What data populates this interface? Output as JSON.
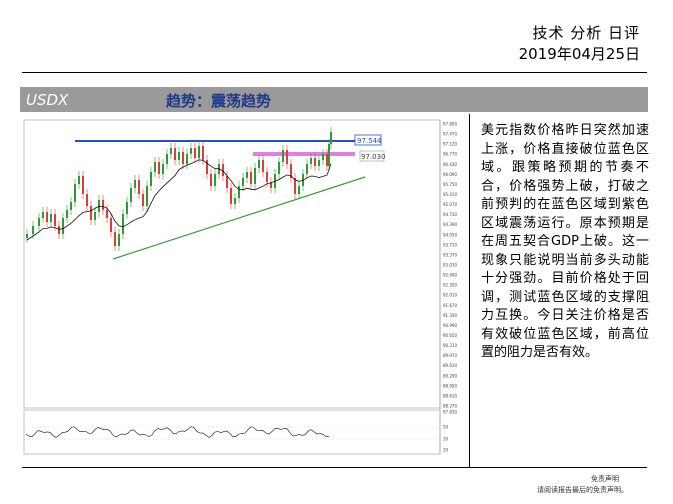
{
  "header": {
    "title": "技术 分析 日评",
    "date": "2019年04月25日"
  },
  "band": {
    "symbol": "USDX",
    "trend": "趋势：震荡趋势"
  },
  "chart": {
    "levels": {
      "resistance_blue": "97.544",
      "magenta": "97.030"
    },
    "axis_ticks": [
      "97.800",
      "97.470",
      "97.120",
      "96.770",
      "96.430",
      "96.090",
      "95.750",
      "95.410",
      "95.070",
      "94.730",
      "94.390",
      "94.050",
      "93.710",
      "93.370",
      "93.030",
      "92.690",
      "92.350",
      "92.010",
      "91.670",
      "91.330",
      "90.990",
      "90.650",
      "90.310",
      "89.970",
      "89.630",
      "89.290",
      "88.950",
      "88.610",
      "88.270"
    ],
    "osc_ticks": [
      "97.830",
      "50",
      "30",
      "20"
    ],
    "colors": {
      "blue_line": "#2a4bd1",
      "magenta_band": "#e07fe0",
      "trend_line": "#3c9a3c",
      "up_candle": "#2e9b2e",
      "down_candle": "#e23a3a"
    }
  },
  "commentary": "美元指数价格昨日突然加速上涨，价格直接破位蓝色区域。跟策略预期的节奏不合，价格强势上破，打破之前预判的在蓝色区域到紫色区域震荡运行。原本预期是在周五契合GDP上破。这一现象只能说明当前多头动能十分强劲。目前价格处于回调，测试蓝色区域的支撑阻力互换。今日关注价格是否有效破位蓝色区域，前高位置的阻力是否有效。",
  "footer": {
    "line1": "免责声明",
    "line2": "请阅读报告最后的免责声明。"
  }
}
